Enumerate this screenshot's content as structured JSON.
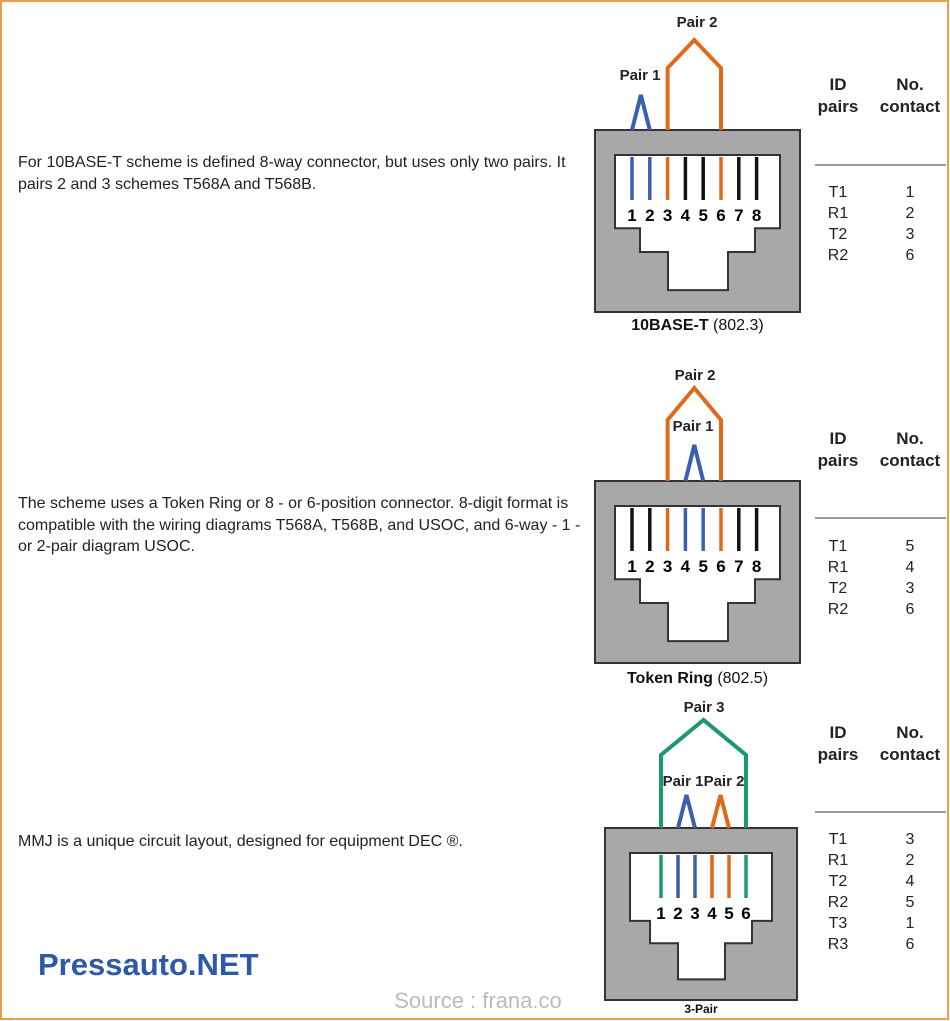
{
  "sections": [
    {
      "description": "For 10BASE-T scheme is defined 8-way connector, but uses only two pairs. It pairs 2 and 3 schemes T568A and T568B.",
      "caption": {
        "name": "10BASE-T",
        "standard": "(802.3)"
      },
      "pairs": [
        "Pair 1",
        "Pair 2"
      ],
      "pins": [
        "1",
        "2",
        "3",
        "4",
        "5",
        "6",
        "7",
        "8"
      ],
      "wire_colors": [
        "#3b5fb0",
        "#3b5fb0",
        "#e06a1b",
        "#111111",
        "#111111",
        "#e06a1b",
        "#111111",
        "#111111"
      ],
      "table": {
        "id_header": [
          "ID",
          "pairs"
        ],
        "contact_header": [
          "No.",
          "contact"
        ],
        "rows": [
          [
            "T1",
            "1"
          ],
          [
            "R1",
            "2"
          ],
          [
            "T2",
            "3"
          ],
          [
            "R2",
            "6"
          ]
        ]
      }
    },
    {
      "description": "The scheme uses a Token Ring or 8 - or 6-position connector. 8-digit format is compatible with the wiring diagrams T568A, T568B, and USOC, and 6-way - 1 - or 2-pair diagram USOC.",
      "caption": {
        "name": "Token Ring",
        "standard": "(802.5)"
      },
      "pairs": [
        "Pair 2",
        "Pair 1"
      ],
      "pins": [
        "1",
        "2",
        "3",
        "4",
        "5",
        "6",
        "7",
        "8"
      ],
      "wire_colors": [
        "#111111",
        "#111111",
        "#e06a1b",
        "#3b5fb0",
        "#3b5fb0",
        "#e06a1b",
        "#111111",
        "#111111"
      ],
      "table": {
        "id_header": [
          "ID",
          "pairs"
        ],
        "contact_header": [
          "No.",
          "contact"
        ],
        "rows": [
          [
            "T1",
            "5"
          ],
          [
            "R1",
            "4"
          ],
          [
            "T2",
            "3"
          ],
          [
            "R2",
            "6"
          ]
        ]
      }
    },
    {
      "description": "MMJ is a unique circuit layout, designed for equipment DEC ®.",
      "caption": {
        "name": "3-Pair"
      },
      "pairs": [
        "Pair 3",
        "Pair 1",
        "Pair 2"
      ],
      "pins": [
        "1",
        "2",
        "3",
        "4",
        "5",
        "6"
      ],
      "wire_colors": [
        "#1a9a6a",
        "#3b5fb0",
        "#3b5fb0",
        "#e06a1b",
        "#e06a1b",
        "#1a9a6a"
      ],
      "table": {
        "id_header": [
          "ID",
          "pairs"
        ],
        "contact_header": [
          "No.",
          "contact"
        ],
        "rows": [
          [
            "T1",
            "3"
          ],
          [
            "R1",
            "2"
          ],
          [
            "T2",
            "4"
          ],
          [
            "R2",
            "5"
          ],
          [
            "T3",
            "1"
          ],
          [
            "R3",
            "6"
          ]
        ]
      }
    }
  ],
  "footer": {
    "brand": "Pressauto.NET",
    "source": "Source : frana.co"
  }
}
